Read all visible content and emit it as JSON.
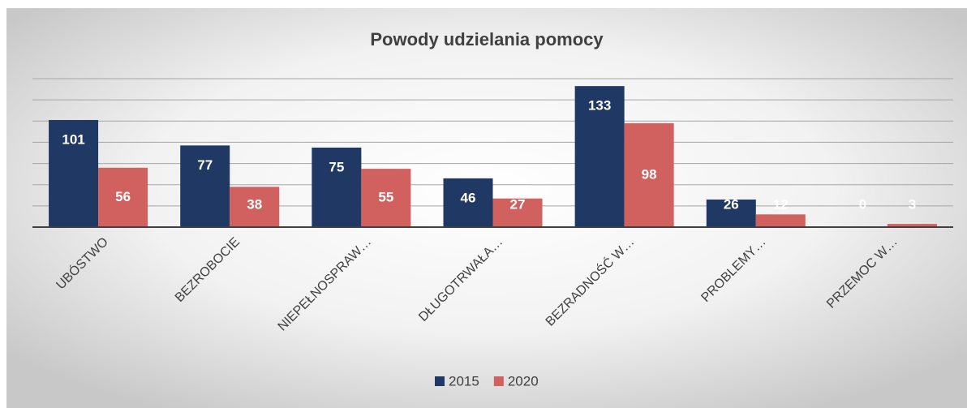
{
  "chart_data": {
    "type": "bar",
    "title": "Powody udzielania pomocy",
    "categories": [
      "UBÓSTWO",
      "BEZROBOCIE",
      "NIEPEŁNOSPRAW…",
      "DŁUGOTRWAŁA…",
      "BEZRADNOŚĆ W…",
      "PROBLEMY…",
      "PRZEMOC W…"
    ],
    "series": [
      {
        "name": "2015",
        "color": "#203864",
        "values": [
          101,
          77,
          75,
          46,
          133,
          26,
          0
        ]
      },
      {
        "name": "2020",
        "color": "#d0615f",
        "values": [
          56,
          38,
          55,
          27,
          98,
          12,
          3
        ]
      }
    ],
    "ylim": [
      0,
      140
    ],
    "yticks": [
      0,
      20,
      40,
      60,
      80,
      100,
      120,
      140
    ],
    "grid": true,
    "legend": "bottom"
  }
}
